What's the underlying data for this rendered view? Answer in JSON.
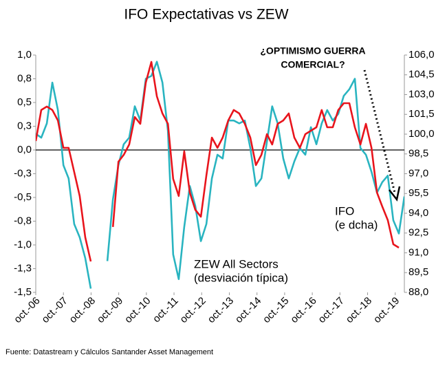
{
  "chart_data": {
    "type": "line",
    "title": "IFO Expectativas vs ZEW",
    "source": "Fuente: Datastream y Cálculos Santander Asset Management",
    "annotations": [
      [
        "¿OPTIMISMO GUERRA",
        "COMERCIAL?"
      ],
      [
        "IFO",
        "(e dcha)"
      ],
      [
        "ZEW All Sectors",
        "(desviación típica)"
      ]
    ],
    "x": [
      2006.75,
      2006.95,
      2007.15,
      2007.35,
      2007.55,
      2007.75,
      2007.94,
      2008.14,
      2008.34,
      2008.54,
      2008.74,
      2008.94,
      2009.14,
      2009.34,
      2009.54,
      2009.74,
      2009.93,
      2010.13,
      2010.33,
      2010.53,
      2010.73,
      2010.93,
      2011.13,
      2011.33,
      2011.53,
      2011.72,
      2011.92,
      2012.12,
      2012.32,
      2012.52,
      2012.72,
      2012.92,
      2013.12,
      2013.32,
      2013.51,
      2013.71,
      2013.91,
      2014.11,
      2014.31,
      2014.51,
      2014.71,
      2014.91,
      2015.11,
      2015.3,
      2015.5,
      2015.7,
      2015.9,
      2016.1,
      2016.3,
      2016.5,
      2016.7,
      2016.9,
      2017.09,
      2017.29,
      2017.49,
      2017.69,
      2017.89,
      2018.09,
      2018.29,
      2018.49,
      2018.69,
      2018.89,
      2019.09,
      2019.28,
      2019.48,
      2019.68,
      2019.88,
      2020.08
    ],
    "series": [
      {
        "name": "ZEW All Sectors",
        "color": "#29b4c0",
        "values": [
          0.17,
          0.13,
          0.28,
          0.71,
          0.42,
          -0.16,
          -0.3,
          -0.78,
          -0.92,
          -1.14,
          -1.46,
          null,
          null,
          -1.17,
          -0.52,
          -0.16,
          0.06,
          0.13,
          0.46,
          0.31,
          0.75,
          0.78,
          0.93,
          0.71,
          0.2,
          -1.1,
          -1.36,
          -0.81,
          -0.38,
          -0.59,
          -0.96,
          -0.78,
          -0.3,
          -0.05,
          -0.09,
          0.31,
          0.31,
          0.28,
          0.31,
          0.02,
          -0.38,
          -0.3,
          0.09,
          0.46,
          0.28,
          -0.09,
          -0.3,
          -0.12,
          0.02,
          -0.05,
          0.24,
          0.06,
          0.28,
          0.42,
          0.31,
          0.38,
          0.57,
          0.64,
          0.75,
          0.02,
          -0.05,
          -0.23,
          -0.45,
          -0.34,
          -0.27,
          -0.74,
          -0.88,
          -0.49
        ]
      },
      {
        "name": "IFO",
        "color": "#e8141c",
        "axis": "y2",
        "values": [
          99.48,
          101.83,
          102.09,
          101.83,
          101.04,
          98.96,
          98.96,
          97.13,
          95.31,
          92.17,
          90.35,
          null,
          null,
          null,
          92.96,
          97.91,
          98.43,
          99.22,
          101.3,
          100.78,
          103.91,
          105.48,
          102.87,
          101.57,
          100.78,
          96.61,
          95.31,
          98.7,
          95.57,
          94.26,
          93.74,
          96.87,
          99.74,
          98.96,
          99.74,
          101.04,
          101.83,
          101.57,
          100.78,
          99.74,
          97.65,
          98.43,
          100.0,
          99.22,
          100.78,
          101.04,
          101.57,
          99.74,
          98.96,
          100.0,
          100.26,
          100.52,
          101.83,
          100.52,
          100.52,
          101.83,
          102.35,
          102.35,
          100.52,
          99.22,
          100.78,
          98.96,
          95.57,
          94.52,
          93.48,
          91.65,
          91.39,
          null
        ]
      }
    ],
    "xlim": [
      2006.75,
      2020.08
    ],
    "xticks": [
      {
        "value": 2006.75,
        "label": "oct.-06"
      },
      {
        "value": 2007.75,
        "label": "oct.-07"
      },
      {
        "value": 2008.75,
        "label": "oct.-08"
      },
      {
        "value": 2009.75,
        "label": "oct.-09"
      },
      {
        "value": 2010.75,
        "label": "oct.-10"
      },
      {
        "value": 2011.75,
        "label": "oct.-11"
      },
      {
        "value": 2012.75,
        "label": "oct.-12"
      },
      {
        "value": 2013.75,
        "label": "oct.-13"
      },
      {
        "value": 2014.75,
        "label": "oct.-14"
      },
      {
        "value": 2015.75,
        "label": "oct.-15"
      },
      {
        "value": 2016.75,
        "label": "oct.-16"
      },
      {
        "value": 2017.75,
        "label": "oct.-17"
      },
      {
        "value": 2018.75,
        "label": "oct.-18"
      },
      {
        "value": 2019.75,
        "label": "oct.-19"
      }
    ],
    "ylim": [
      -1.5,
      1.0
    ],
    "yticks": [
      {
        "value": 1.0,
        "label": "1,0"
      },
      {
        "value": 0.75,
        "label": "0,8"
      },
      {
        "value": 0.5,
        "label": "0,5"
      },
      {
        "value": 0.25,
        "label": "0,3"
      },
      {
        "value": 0,
        "label": "0,0"
      },
      {
        "value": -0.25,
        "label": "-0,3"
      },
      {
        "value": -0.5,
        "label": "-0,5"
      },
      {
        "value": -0.75,
        "label": "-0,8"
      },
      {
        "value": -1.0,
        "label": "-1,0"
      },
      {
        "value": -1.25,
        "label": "-1,3"
      },
      {
        "value": -1.5,
        "label": "-1,5"
      }
    ],
    "y2lim": [
      88,
      106
    ],
    "y2ticks": [
      {
        "value": 106,
        "label": "106,0"
      },
      {
        "value": 104.5,
        "label": "104,5"
      },
      {
        "value": 103,
        "label": "103,0"
      },
      {
        "value": 101.5,
        "label": "101,5"
      },
      {
        "value": 100,
        "label": "100,0"
      },
      {
        "value": 98.5,
        "label": "98,5"
      },
      {
        "value": 97,
        "label": "97,0"
      },
      {
        "value": 95.5,
        "label": "95,5"
      },
      {
        "value": 94,
        "label": "94,0"
      },
      {
        "value": 92.5,
        "label": "92,5"
      },
      {
        "value": 91,
        "label": "91,0"
      },
      {
        "value": 89.5,
        "label": "89,5"
      },
      {
        "value": 88,
        "label": "88,0"
      }
    ],
    "grid": false
  }
}
